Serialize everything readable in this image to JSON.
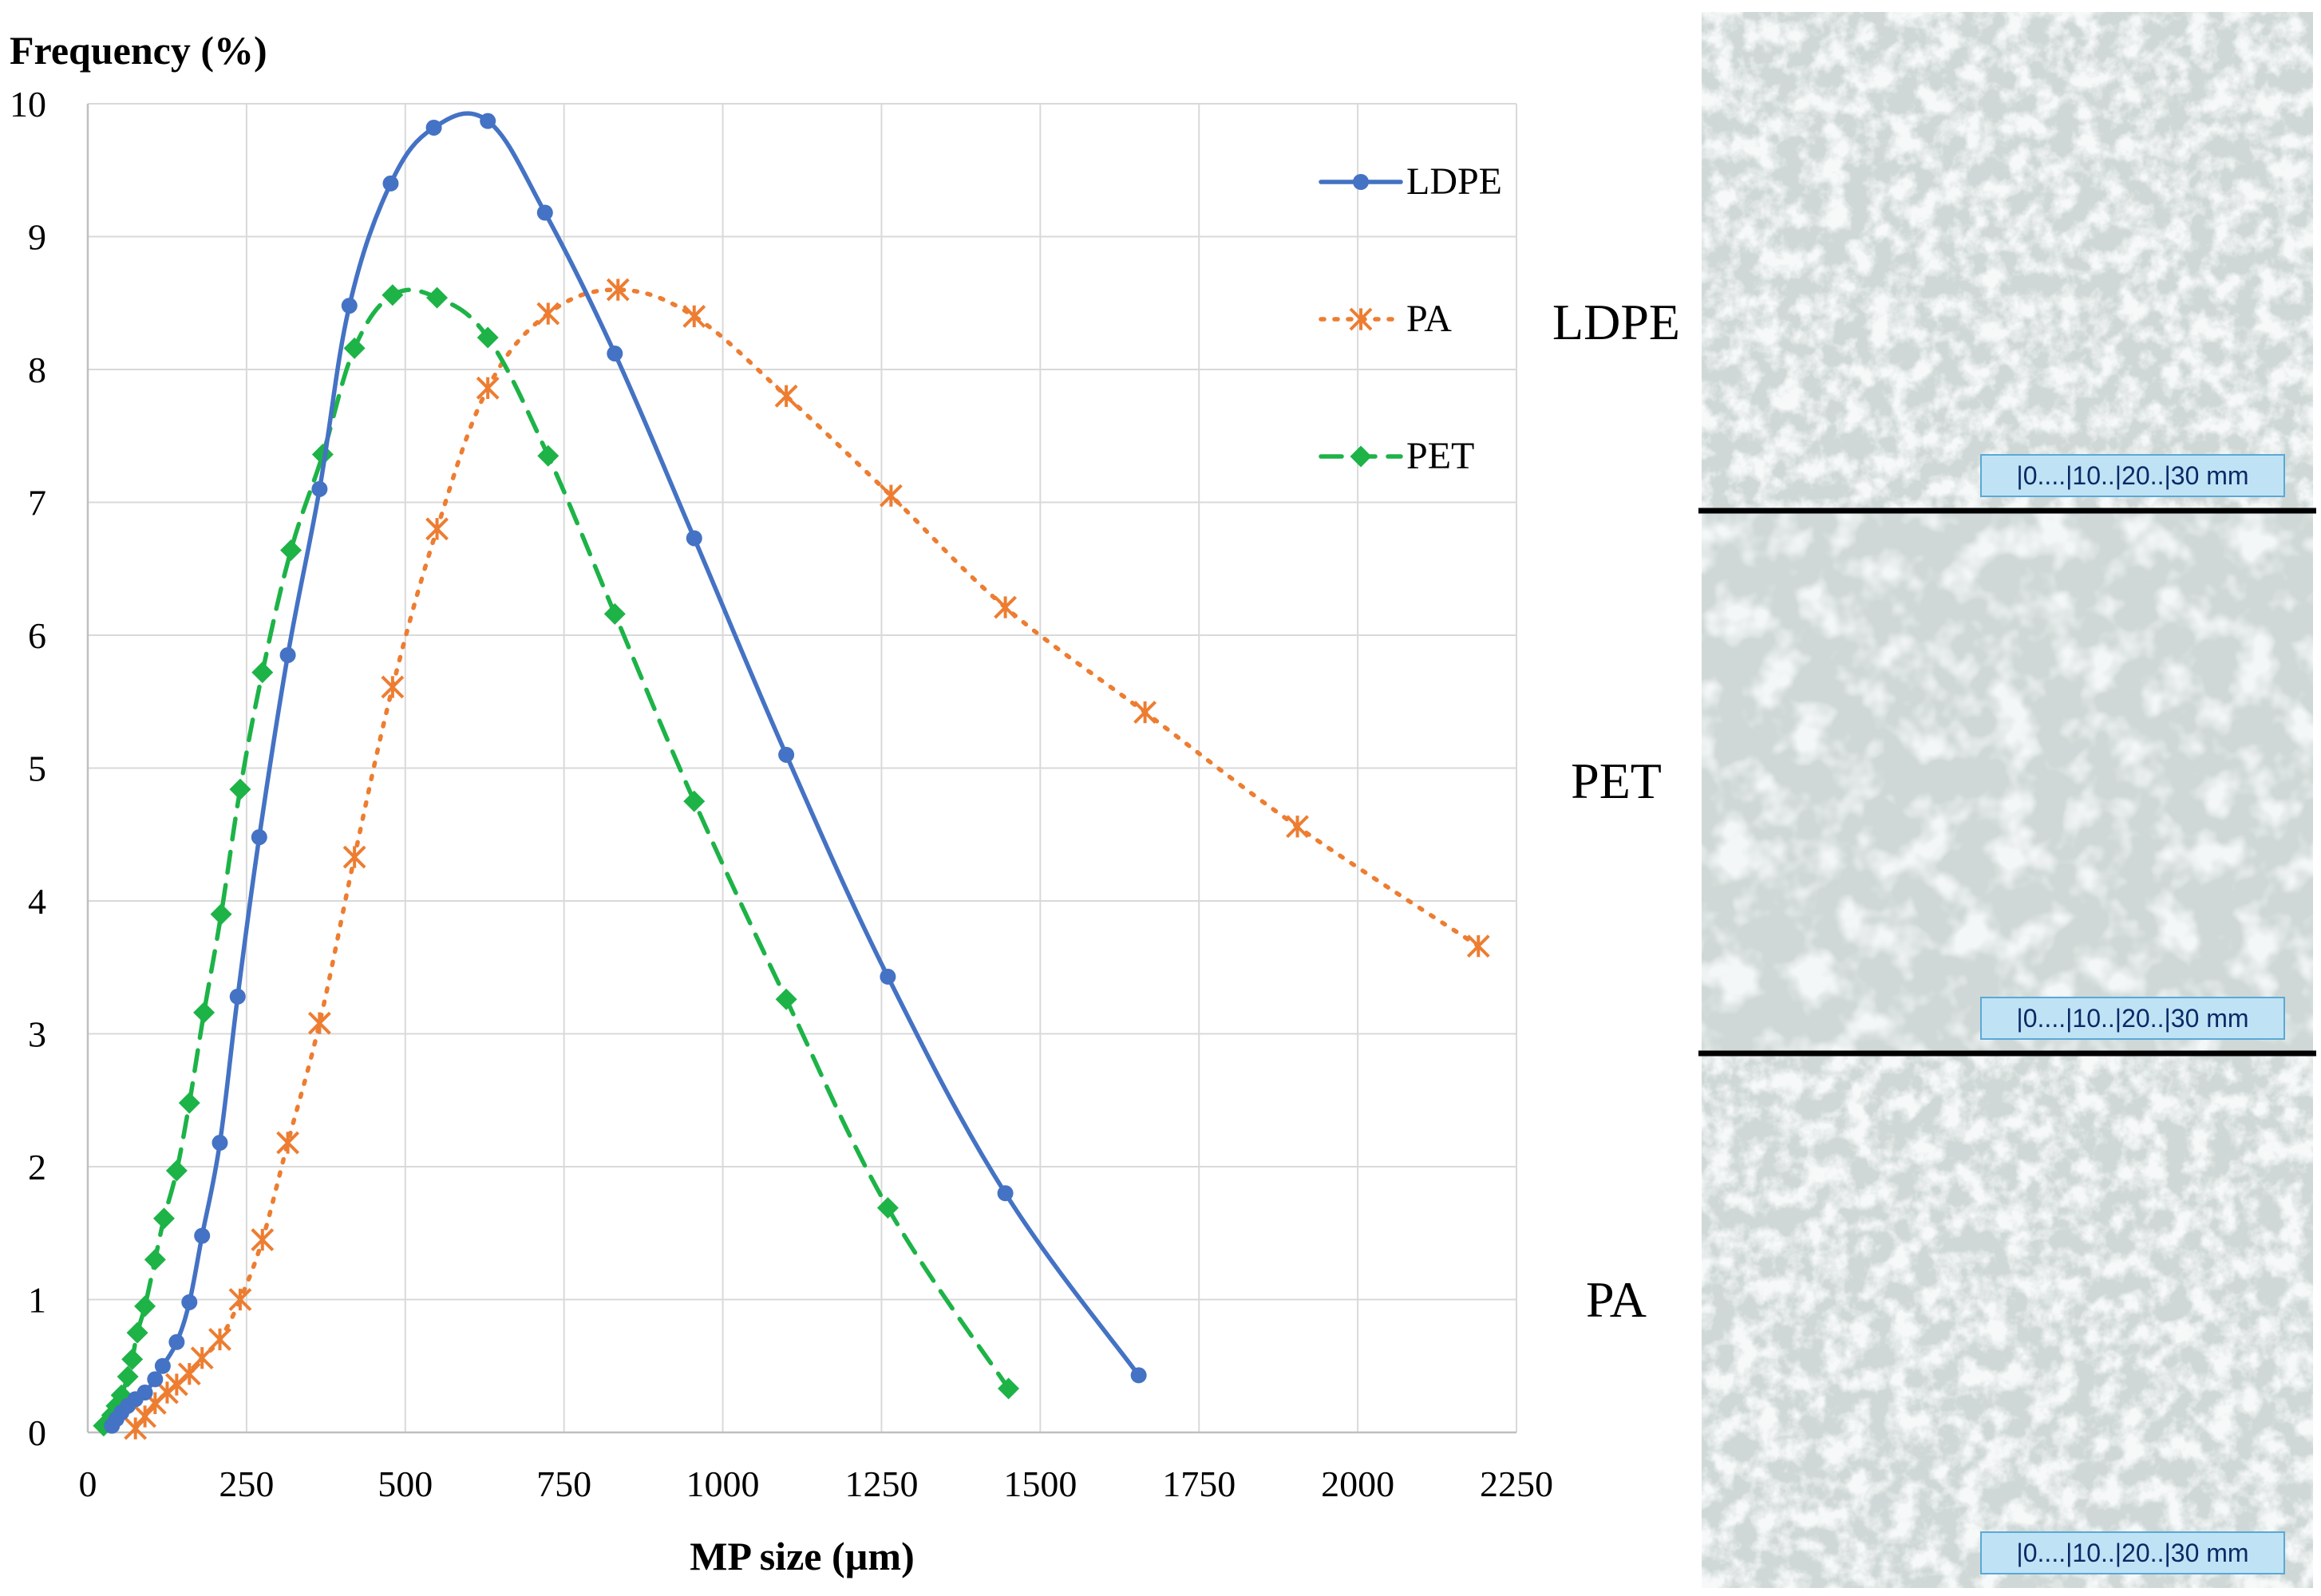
{
  "chart_data": {
    "type": "line",
    "title": "",
    "ylabel": "Frequency (%)",
    "xlabel": "MP size (µm)",
    "xlim": [
      0,
      2250
    ],
    "ylim": [
      0,
      10
    ],
    "grid": true,
    "legend_position": "top-right",
    "x_ticks": [
      {
        "value": 0,
        "label": "0"
      },
      {
        "value": 250,
        "label": "250"
      },
      {
        "value": 500,
        "label": "500"
      },
      {
        "value": 750,
        "label": "750"
      },
      {
        "value": 1000,
        "label": "1000"
      },
      {
        "value": 1250,
        "label": "1250"
      },
      {
        "value": 1500,
        "label": "1500"
      },
      {
        "value": 1750,
        "label": "1750"
      },
      {
        "value": 2000,
        "label": "2000"
      },
      {
        "value": 2250,
        "label": "2250"
      }
    ],
    "y_ticks": [
      {
        "value": 0,
        "label": "0"
      },
      {
        "value": 1,
        "label": "1"
      },
      {
        "value": 2,
        "label": "2"
      },
      {
        "value": 3,
        "label": "3"
      },
      {
        "value": 4,
        "label": "4"
      },
      {
        "value": 5,
        "label": "5"
      },
      {
        "value": 6,
        "label": "6"
      },
      {
        "value": 7,
        "label": "7"
      },
      {
        "value": 8,
        "label": "8"
      },
      {
        "value": 9,
        "label": "9"
      },
      {
        "value": 10,
        "label": "10"
      }
    ],
    "series": [
      {
        "name": "LDPE",
        "color": "#4472c4",
        "marker": "circle",
        "line_style": "solid",
        "points": [
          [
            38,
            0.05
          ],
          [
            45,
            0.1
          ],
          [
            53,
            0.15
          ],
          [
            63,
            0.2
          ],
          [
            75,
            0.25
          ],
          [
            90,
            0.3
          ],
          [
            106,
            0.4
          ],
          [
            118,
            0.5
          ],
          [
            140,
            0.68
          ],
          [
            160,
            0.98
          ],
          [
            180,
            1.48
          ],
          [
            208,
            2.18
          ],
          [
            236,
            3.28
          ],
          [
            270,
            4.48
          ],
          [
            315,
            5.85
          ],
          [
            365,
            7.1
          ],
          [
            412,
            8.48
          ],
          [
            477,
            9.4
          ],
          [
            545,
            9.82
          ],
          [
            630,
            9.87
          ],
          [
            720,
            9.18
          ],
          [
            830,
            8.12
          ],
          [
            955,
            6.73
          ],
          [
            1100,
            5.1
          ],
          [
            1260,
            3.43
          ],
          [
            1445,
            1.8
          ],
          [
            1655,
            0.43
          ]
        ]
      },
      {
        "name": "PA",
        "color": "#ed7d31",
        "marker": "star",
        "line_style": "dotted",
        "points": [
          [
            75,
            0.03
          ],
          [
            90,
            0.12
          ],
          [
            106,
            0.22
          ],
          [
            125,
            0.3
          ],
          [
            140,
            0.36
          ],
          [
            160,
            0.44
          ],
          [
            180,
            0.56
          ],
          [
            208,
            0.7
          ],
          [
            240,
            1.0
          ],
          [
            275,
            1.45
          ],
          [
            315,
            2.18
          ],
          [
            365,
            3.08
          ],
          [
            420,
            4.33
          ],
          [
            480,
            5.61
          ],
          [
            550,
            6.8
          ],
          [
            630,
            7.86
          ],
          [
            725,
            8.42
          ],
          [
            835,
            8.6
          ],
          [
            955,
            8.4
          ],
          [
            1100,
            7.8
          ],
          [
            1265,
            7.05
          ],
          [
            1445,
            6.21
          ],
          [
            1665,
            5.42
          ],
          [
            1905,
            4.56
          ],
          [
            2190,
            3.66
          ]
        ]
      },
      {
        "name": "PET",
        "color": "#1db347",
        "marker": "diamond",
        "line_style": "dashed",
        "points": [
          [
            25,
            0.05
          ],
          [
            32,
            0.08
          ],
          [
            38,
            0.13
          ],
          [
            45,
            0.2
          ],
          [
            53,
            0.28
          ],
          [
            63,
            0.42
          ],
          [
            70,
            0.55
          ],
          [
            78,
            0.75
          ],
          [
            90,
            0.95
          ],
          [
            106,
            1.3
          ],
          [
            120,
            1.61
          ],
          [
            140,
            1.97
          ],
          [
            160,
            2.48
          ],
          [
            183,
            3.16
          ],
          [
            210,
            3.9
          ],
          [
            240,
            4.84
          ],
          [
            275,
            5.72
          ],
          [
            320,
            6.64
          ],
          [
            370,
            7.36
          ],
          [
            420,
            8.16
          ],
          [
            480,
            8.56
          ],
          [
            550,
            8.54
          ],
          [
            630,
            8.24
          ],
          [
            725,
            7.35
          ],
          [
            830,
            6.16
          ],
          [
            955,
            4.75
          ],
          [
            1100,
            3.26
          ],
          [
            1260,
            1.69
          ],
          [
            1450,
            0.33
          ]
        ]
      }
    ]
  },
  "photos": {
    "panels": [
      {
        "label": "LDPE",
        "scale_text": "|0....|10..|20..|30 mm"
      },
      {
        "label": "PET",
        "scale_text": "|0....|10..|20..|30 mm"
      },
      {
        "label": "PA",
        "scale_text": "|0....|10..|20..|30 mm"
      }
    ]
  }
}
